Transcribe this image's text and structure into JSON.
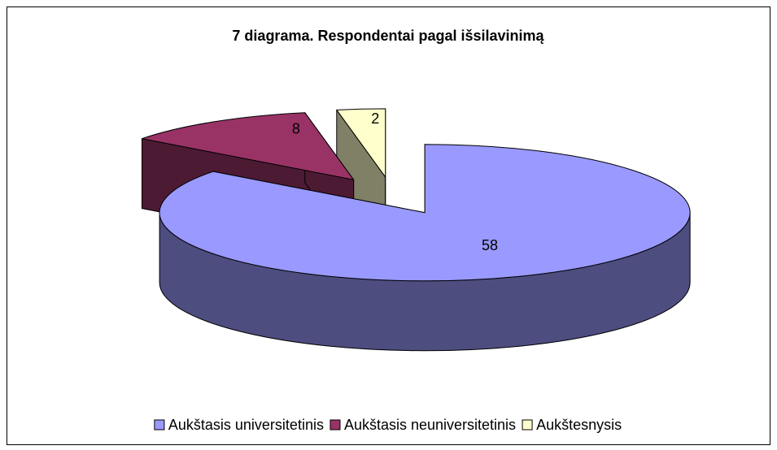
{
  "chart_data": {
    "type": "pie3d",
    "title": "7 diagrama. Respondentai pagal išsilavinimą",
    "categories": [
      "Aukštasis universitetinis",
      "Aukštasis neuniversitetinis",
      "Aukštesnysis"
    ],
    "values": [
      58,
      8,
      2
    ],
    "colors": [
      "#9999ff",
      "#993366",
      "#ffffcc"
    ],
    "legend": "bottom"
  }
}
